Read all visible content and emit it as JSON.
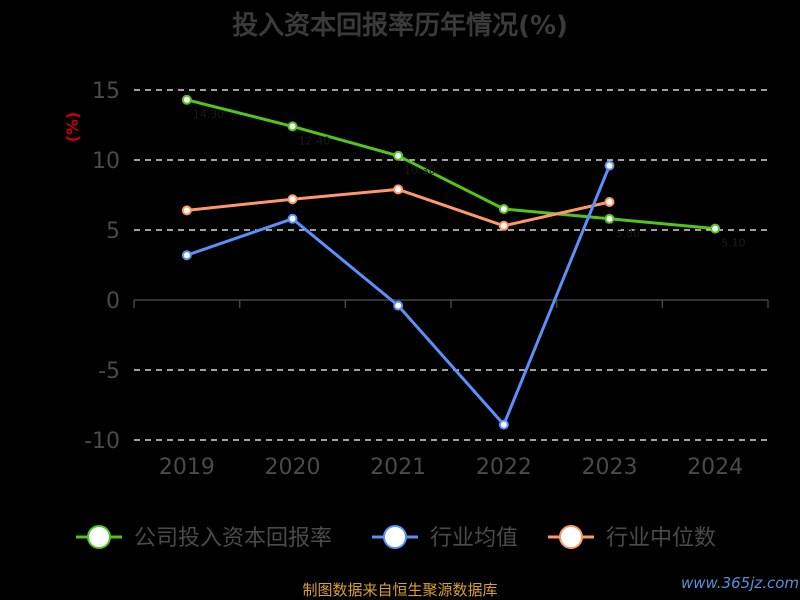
{
  "chart_data": {
    "type": "line",
    "title": "投入资本回报率历年情况(%)",
    "ylabel": "(%)",
    "categories": [
      "2019",
      "2020",
      "2021",
      "2022",
      "2023",
      "2024"
    ],
    "ylim": [
      -10,
      15
    ],
    "yticks": [
      -10,
      -5,
      0,
      5,
      10,
      15
    ],
    "grid": true,
    "legend_position": "bottom",
    "series": [
      {
        "name": "公司投入资本回报率",
        "color": "#52c41a",
        "values": [
          14.3,
          12.4,
          10.3,
          6.5,
          5.8,
          5.1
        ]
      },
      {
        "name": "行业均值",
        "color": "#5b8ff9",
        "values": [
          3.2,
          5.8,
          -0.4,
          -8.9,
          9.6,
          null
        ]
      },
      {
        "name": "行业中位数",
        "color": "#ff9866",
        "values": [
          6.4,
          7.2,
          7.9,
          5.3,
          7.0,
          null
        ]
      }
    ]
  },
  "footer": {
    "source": "制图数据来自恒生聚源数据库",
    "watermark": "www.365jz.com"
  }
}
